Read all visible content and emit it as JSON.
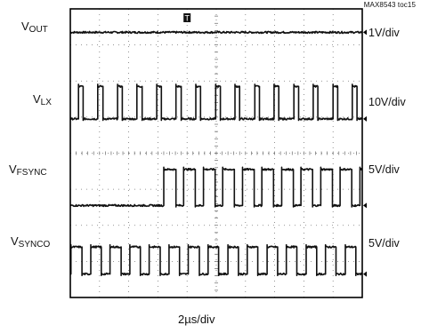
{
  "figure_id": "MAX8543 toc15",
  "time_scale": "2µs/div",
  "chart_data": {
    "type": "line",
    "title": "",
    "xlabel": "2µs/div",
    "grid": true,
    "grid_divisions": {
      "x": 10,
      "y": 8
    },
    "x_unit": "div",
    "xlim": [
      0,
      10
    ],
    "trigger_marker": "T",
    "channels": [
      {
        "name_main": "V",
        "name_sub": "OUT",
        "scale": "1V/div",
        "ground_div": 7.35,
        "waveform": "dc",
        "color": "#111111"
      },
      {
        "name_main": "V",
        "name_sub": "LX",
        "scale": "10V/div",
        "ground_div": 4.95,
        "waveform": "pulse",
        "period_div": 0.67,
        "duty": 0.25,
        "amplitude_div": 0.9,
        "phase_div": 0.27,
        "color": "#111111"
      },
      {
        "name_main": "V",
        "name_sub": "FSYNC",
        "scale": "5V/div",
        "ground_div": 2.55,
        "waveform": "pulse_after",
        "start_div": 3.2,
        "period_div": 0.67,
        "duty": 0.6,
        "amplitude_div": 1.0,
        "color": "#111111"
      },
      {
        "name_main": "V",
        "name_sub": "SYNCO",
        "scale": "5V/div",
        "ground_div": 0.65,
        "waveform": "pulse",
        "period_div": 0.67,
        "duty": 0.55,
        "amplitude_div": 0.75,
        "phase_div": 0.02,
        "color": "#111111"
      }
    ]
  }
}
